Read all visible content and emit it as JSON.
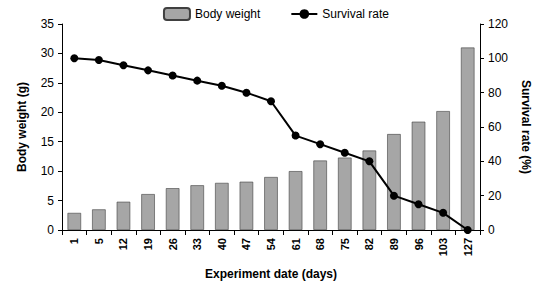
{
  "chart_data": {
    "type": "bar",
    "x_label": "Experiment date (days)",
    "y_label": "Body weight (g)",
    "y2_label": "Survival rate (%)",
    "categories": [
      "1",
      "5",
      "12",
      "19",
      "26",
      "33",
      "40",
      "47",
      "54",
      "61",
      "68",
      "75",
      "82",
      "89",
      "96",
      "103",
      "127"
    ],
    "series": [
      {
        "name": "Body weight",
        "type": "bar",
        "color": "#a6a6a6",
        "values": [
          2.9,
          3.5,
          4.8,
          6.1,
          7.1,
          7.6,
          8.0,
          8.2,
          9.0,
          10.0,
          11.8,
          12.3,
          13.5,
          16.3,
          18.4,
          20.2,
          31.0
        ]
      },
      {
        "name": "Survival rate",
        "type": "line",
        "axis": "y2",
        "color": "#000000",
        "marker": "circle",
        "line_style": "solid",
        "values": [
          100,
          99,
          96,
          93,
          90,
          87,
          84,
          80,
          75,
          55,
          50,
          45,
          40,
          20,
          15,
          10,
          0
        ]
      }
    ],
    "ylim": [
      0,
      35
    ],
    "yticks": [
      0,
      5,
      10,
      15,
      20,
      25,
      30,
      35
    ],
    "y2lim": [
      0,
      120
    ],
    "y2ticks": [
      0,
      20,
      40,
      60,
      80,
      100,
      120
    ],
    "grid": false,
    "legend": "top"
  }
}
